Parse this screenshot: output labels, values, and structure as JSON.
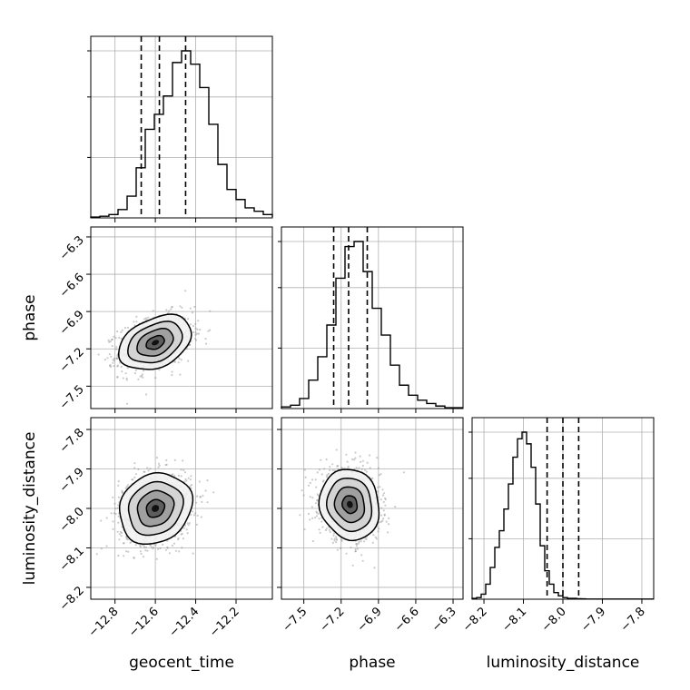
{
  "chart_data": {
    "type": "corner",
    "parameters": [
      "geocent_time",
      "phase",
      "luminosity_distance"
    ],
    "axes": {
      "geocent_time": {
        "range": [
          -12.92,
          -12.02
        ],
        "ticks": [
          -12.8,
          -12.6,
          -12.4,
          -12.2
        ],
        "tick_labels": [
          "−12.8",
          "−12.6",
          "−12.4",
          "−12.2"
        ],
        "quantiles": [
          -12.67,
          -12.58,
          -12.45
        ],
        "hist_edges_start": -12.92,
        "hist_bin_width": 0.045,
        "hist_counts": [
          0.5,
          1,
          2,
          5,
          13,
          30,
          53,
          62,
          73,
          93,
          100,
          92,
          78,
          56,
          32,
          17,
          11,
          6,
          4,
          2,
          1,
          0.5
        ]
      },
      "phase": {
        "range": [
          -7.68,
          -6.22
        ],
        "ticks": [
          -7.5,
          -7.2,
          -6.9,
          -6.6,
          -6.3
        ],
        "tick_labels": [
          "−7.5",
          "−7.2",
          "−6.9",
          "−6.6",
          "−6.3"
        ],
        "quantiles": [
          -7.26,
          -7.14,
          -6.99
        ],
        "hist_edges_start": -7.68,
        "hist_bin_width": 0.073,
        "hist_counts": [
          1,
          2,
          6,
          17,
          31,
          50,
          78,
          97,
          100,
          82,
          60,
          44,
          26,
          14,
          8,
          5,
          3,
          1.5,
          0.5,
          0.5
        ]
      },
      "luminosity_distance": {
        "range": [
          -8.23,
          -7.77
        ],
        "ticks": [
          -8.2,
          -8.1,
          -8.0,
          -7.9,
          -7.8
        ],
        "tick_labels": [
          "−8.2",
          "−8.1",
          "−8.0",
          "−7.9",
          "−7.8"
        ],
        "quantiles": [
          -8.04,
          -8.0,
          -7.96
        ],
        "hist_edges_start": -8.23,
        "hist_bin_width": 0.0115,
        "hist_counts": [
          0.5,
          1,
          3,
          9,
          19,
          31,
          41,
          54,
          69,
          85,
          96,
          100,
          93,
          79,
          57,
          32,
          17,
          9,
          4,
          2,
          1,
          0.5,
          0.5,
          0.3,
          0.2,
          0.1,
          0.1,
          0.1,
          0.1,
          0.1,
          0.1,
          0.1,
          0.1,
          0.1,
          0.1,
          0.1,
          0.1,
          0.1,
          0.1,
          0.1
        ]
      }
    },
    "pairs": [
      {
        "x": "geocent_time",
        "y": "phase",
        "mean": [
          -12.6,
          -7.15
        ],
        "sd": [
          0.09,
          0.11
        ],
        "rho": 0.35
      },
      {
        "x": "geocent_time",
        "y": "luminosity_distance",
        "mean": [
          -12.6,
          -8.0
        ],
        "sd": [
          0.09,
          0.045
        ],
        "rho": 0.15
      },
      {
        "x": "phase",
        "y": "luminosity_distance",
        "mean": [
          -7.13,
          -7.99
        ],
        "sd": [
          0.12,
          0.045
        ],
        "rho": -0.1
      }
    ],
    "contour_levels_sigma": [
      0.5,
      1.0,
      1.5,
      2.0
    ],
    "scatter_points_per_panel": 1100,
    "grid": true
  }
}
